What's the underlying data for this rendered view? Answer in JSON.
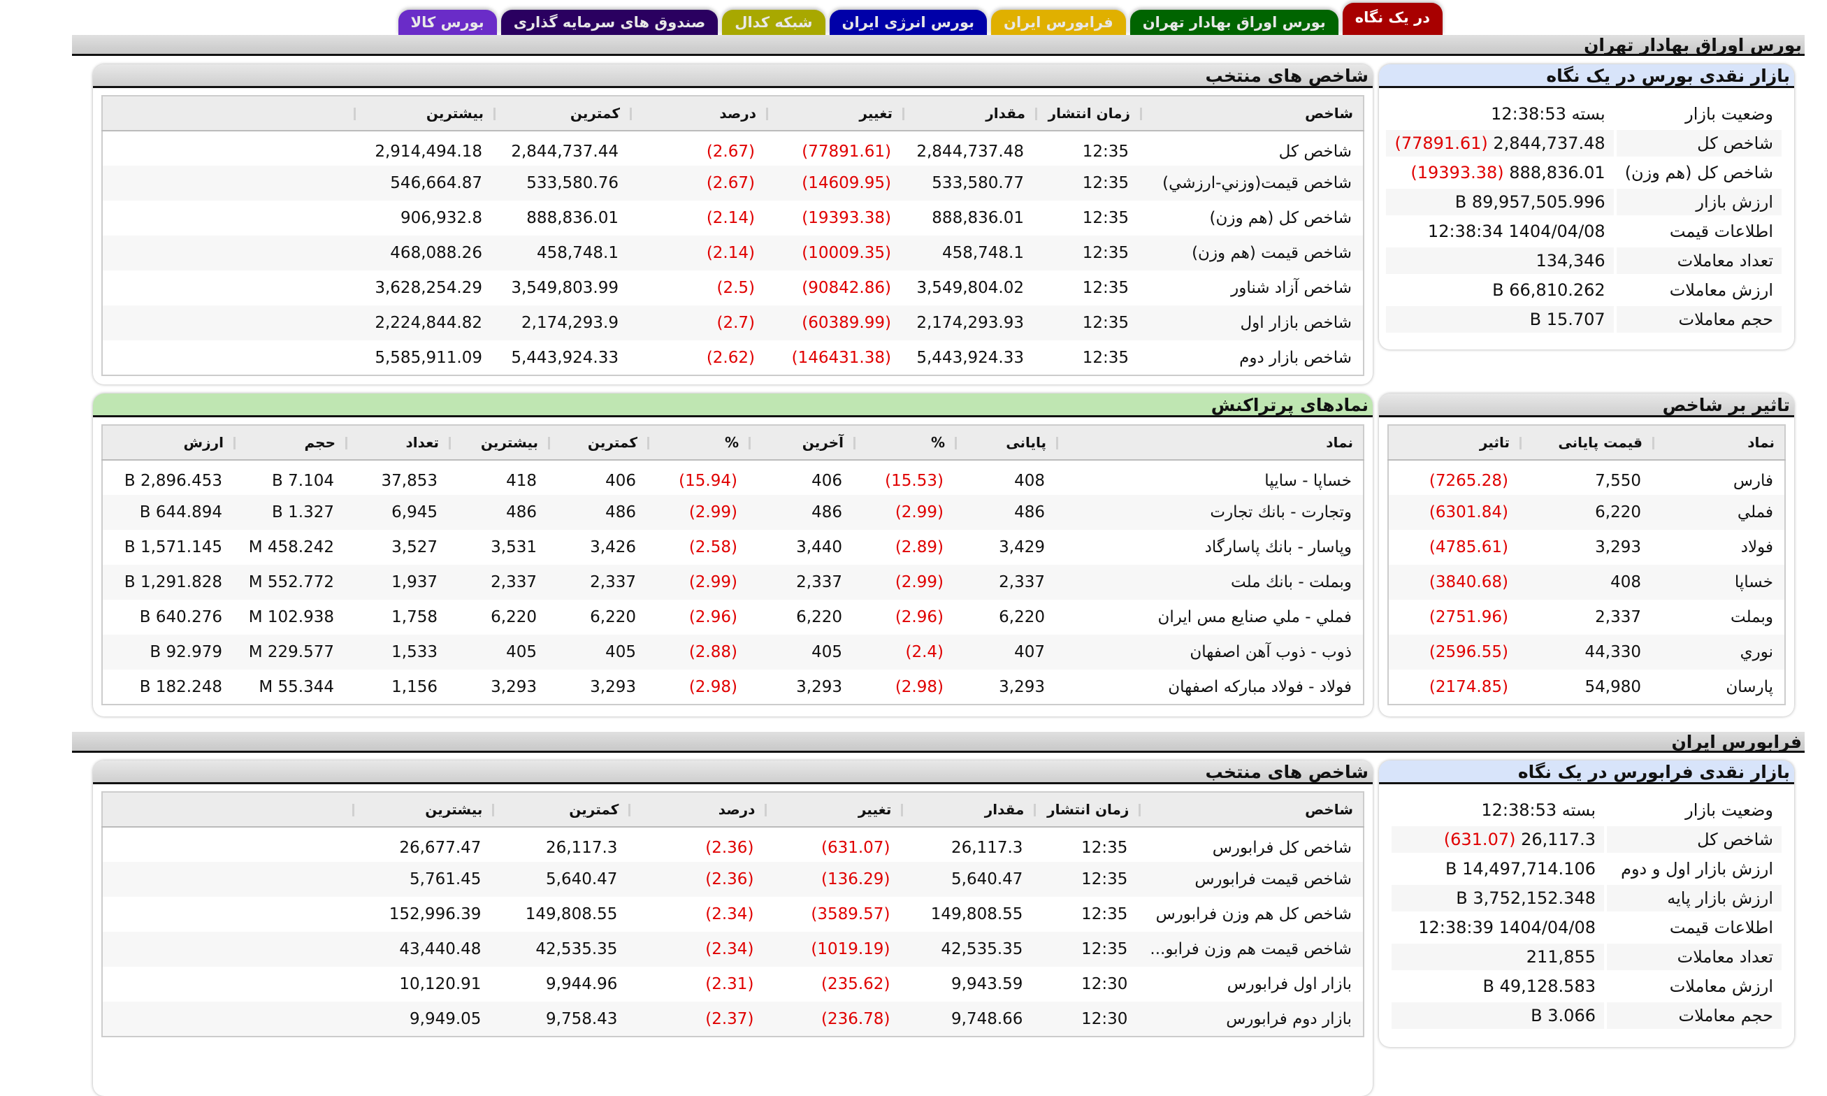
{
  "tabs": [
    {
      "label": "در یک نگاه",
      "color": "#a80000",
      "active": true
    },
    {
      "label": "بورس اوراق بهادار تهران",
      "color": "#006400"
    },
    {
      "label": "فرابورس ایران",
      "color": "#e0b000"
    },
    {
      "label": "بورس انرژی ایران",
      "color": "#0000a8"
    },
    {
      "label": "شبکه کدال",
      "color": "#a8a800"
    },
    {
      "label": "صندوق های سرمایه گذاری",
      "color": "#2a0060"
    },
    {
      "label": "بورس کالا",
      "color": "#6a2cc8"
    }
  ],
  "tse": {
    "title": "بورس اوراق بهادار تهران",
    "glance": {
      "title": "بازار نقدی بورس در یک نگاه",
      "rows": [
        {
          "label": "وضعیت بازار",
          "value": "بسته 12:38:53",
          "change": ""
        },
        {
          "label": "شاخص کل",
          "value": "2,844,737.48",
          "change": "(77891.61)"
        },
        {
          "label": "شاخص کل (هم وزن)",
          "value": "888,836.01",
          "change": "(19393.38)"
        },
        {
          "label": "ارزش بازار",
          "value": "89,957,505.996 B",
          "change": ""
        },
        {
          "label": "اطلاعات قیمت",
          "value": "1404/04/08 12:38:34",
          "change": ""
        },
        {
          "label": "تعداد معاملات",
          "value": "134,346",
          "change": ""
        },
        {
          "label": "ارزش معاملات",
          "value": "66,810.262 B",
          "change": ""
        },
        {
          "label": "حجم معاملات",
          "value": "15.707 B",
          "change": ""
        }
      ]
    },
    "indices": {
      "title": "شاخص های منتخب",
      "headers": [
        "شاخص",
        "زمان انتشار",
        "مقدار",
        "تغییر",
        "درصد",
        "کمترین",
        "بیشترین",
        ""
      ],
      "rows": [
        [
          "شاخص کل",
          "12:35",
          "2,844,737.48",
          "(77891.61)",
          "(2.67)",
          "2,844,737.44",
          "2,914,494.18",
          ""
        ],
        [
          "شاخص قیمت(وزني-ارزشي)",
          "12:35",
          "533,580.77",
          "(14609.95)",
          "(2.67)",
          "533,580.76",
          "546,664.87",
          ""
        ],
        [
          "شاخص کل (هم وزن)",
          "12:35",
          "888,836.01",
          "(19393.38)",
          "(2.14)",
          "888,836.01",
          "906,932.8",
          ""
        ],
        [
          "شاخص قیمت (هم وزن)",
          "12:35",
          "458,748.1",
          "(10009.35)",
          "(2.14)",
          "458,748.1",
          "468,088.26",
          ""
        ],
        [
          "شاخص آزاد شناور",
          "12:35",
          "3,549,804.02",
          "(90842.86)",
          "(2.5)",
          "3,549,803.99",
          "3,628,254.29",
          ""
        ],
        [
          "شاخص بازار اول",
          "12:35",
          "2,174,293.93",
          "(60389.99)",
          "(2.7)",
          "2,174,293.9",
          "2,224,844.82",
          ""
        ],
        [
          "شاخص بازار دوم",
          "12:35",
          "5,443,924.33",
          "(146431.38)",
          "(2.62)",
          "5,443,924.33",
          "5,585,911.09",
          ""
        ]
      ]
    },
    "impact": {
      "title": "تاثیر بر شاخص",
      "headers": [
        "نماد",
        "قیمت پایانی",
        "تاثیر"
      ],
      "rows": [
        [
          "فارس",
          "7,550",
          "(7265.28)"
        ],
        [
          "فملي",
          "6,220",
          "(6301.84)"
        ],
        [
          "فولاد",
          "3,293",
          "(4785.61)"
        ],
        [
          "خساپا",
          "408",
          "(3840.68)"
        ],
        [
          "وبملت",
          "2,337",
          "(2751.96)"
        ],
        [
          "نوري",
          "44,330",
          "(2596.55)"
        ],
        [
          "پارسان",
          "54,980",
          "(2174.85)"
        ]
      ]
    },
    "active": {
      "title": "نمادهای پرتراکنش",
      "headers": [
        "نماد",
        "پایانی",
        "%",
        "آخرین",
        "%",
        "کمترین",
        "بیشترین",
        "تعداد",
        "حجم",
        "ارزش"
      ],
      "rows": [
        [
          "خساپا - سايپا",
          "408",
          "(15.53)",
          "406",
          "(15.94)",
          "406",
          "418",
          "37,853",
          "7.104 B",
          "2,896.453 B"
        ],
        [
          "وتجارت - بانك تجارت",
          "486",
          "(2.99)",
          "486",
          "(2.99)",
          "486",
          "486",
          "6,945",
          "1.327 B",
          "644.894 B"
        ],
        [
          "وپاسار - بانك پاسارگاد",
          "3,429",
          "(2.89)",
          "3,440",
          "(2.58)",
          "3,426",
          "3,531",
          "3,527",
          "458.242 M",
          "1,571.145 B"
        ],
        [
          "وبملت - بانك ملت",
          "2,337",
          "(2.99)",
          "2,337",
          "(2.99)",
          "2,337",
          "2,337",
          "1,937",
          "552.772 M",
          "1,291.828 B"
        ],
        [
          "فملي - ملي صنايع مس ايران",
          "6,220",
          "(2.96)",
          "6,220",
          "(2.96)",
          "6,220",
          "6,220",
          "1,758",
          "102.938 M",
          "640.276 B"
        ],
        [
          "ذوب - ذوب آهن اصفهان",
          "407",
          "(2.4)",
          "405",
          "(2.88)",
          "405",
          "405",
          "1,533",
          "229.577 M",
          "92.979 B"
        ],
        [
          "فولاد - فولاد مباركه اصفهان",
          "3,293",
          "(2.98)",
          "3,293",
          "(2.98)",
          "3,293",
          "3,293",
          "1,156",
          "55.344 M",
          "182.248 B"
        ]
      ]
    }
  },
  "ifb": {
    "title": "فرابورس ایران",
    "glance": {
      "title": "بازار نقدی فرابورس در یک نگاه",
      "rows": [
        {
          "label": "وضعیت بازار",
          "value": "بسته 12:38:53",
          "change": ""
        },
        {
          "label": "شاخص کل",
          "value": "26,117.3",
          "change": "(631.07)"
        },
        {
          "label": "ارزش بازار اول و دوم",
          "value": "14,497,714.106 B",
          "change": ""
        },
        {
          "label": "ارزش بازار پایه",
          "value": "3,752,152.348 B",
          "change": ""
        },
        {
          "label": "اطلاعات قیمت",
          "value": "1404/04/08 12:38:39",
          "change": ""
        },
        {
          "label": "تعداد معاملات",
          "value": "211,855",
          "change": ""
        },
        {
          "label": "ارزش معاملات",
          "value": "49,128.583 B",
          "change": ""
        },
        {
          "label": "حجم معاملات",
          "value": "3.066 B",
          "change": ""
        }
      ]
    },
    "indices": {
      "title": "شاخص های منتخب",
      "headers": [
        "شاخص",
        "زمان انتشار",
        "مقدار",
        "تغییر",
        "درصد",
        "کمترین",
        "بیشترین",
        ""
      ],
      "rows": [
        [
          "شاخص کل فرابورس",
          "12:35",
          "26,117.3",
          "(631.07)",
          "(2.36)",
          "26,117.3",
          "26,677.47",
          ""
        ],
        [
          "شاخص قیمت فرابورس",
          "12:35",
          "5,640.47",
          "(136.29)",
          "(2.36)",
          "5,640.47",
          "5,761.45",
          ""
        ],
        [
          "شاخص کل هم وزن فرابورس",
          "12:35",
          "149,808.55",
          "(3589.57)",
          "(2.34)",
          "149,808.55",
          "152,996.39",
          ""
        ],
        [
          "شاخص قیمت هم وزن فرابو...",
          "12:35",
          "42,535.35",
          "(1019.19)",
          "(2.34)",
          "42,535.35",
          "43,440.48",
          ""
        ],
        [
          "بازار اول فرابورس",
          "12:30",
          "9,943.59",
          "(235.62)",
          "(2.31)",
          "9,944.96",
          "10,120.91",
          ""
        ],
        [
          "بازار دوم فرابورس",
          "12:30",
          "9,748.66",
          "(236.78)",
          "(2.37)",
          "9,758.43",
          "9,949.05",
          ""
        ]
      ]
    }
  }
}
